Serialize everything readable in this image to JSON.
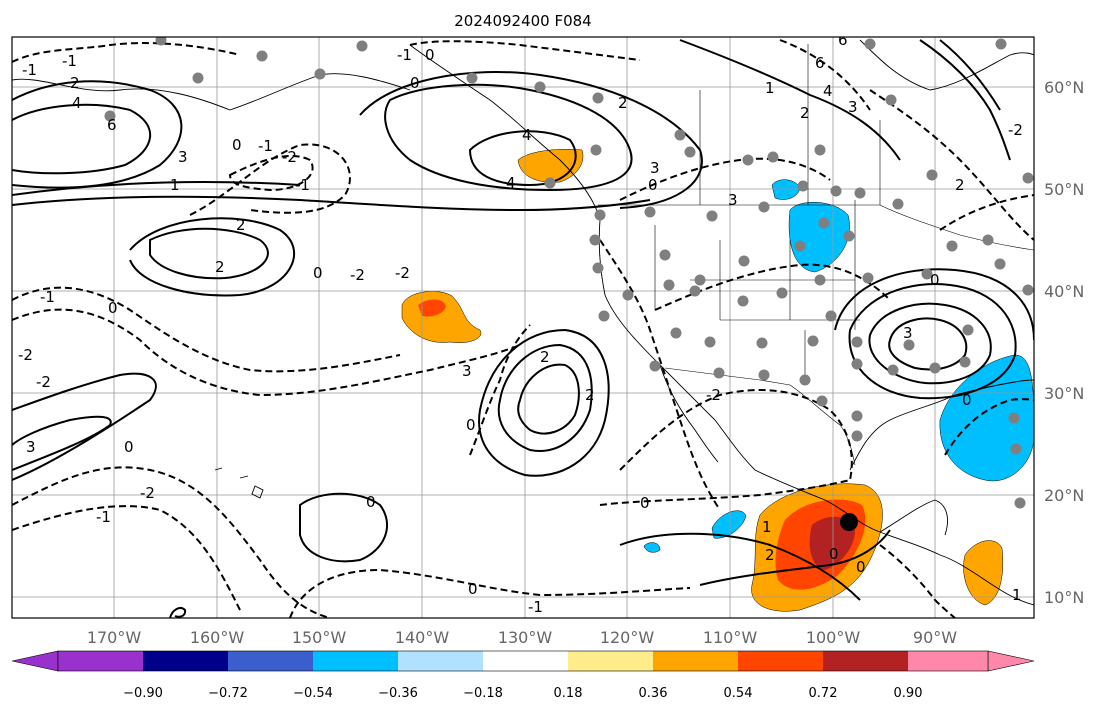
{
  "title": "2024092400 F084",
  "map": {
    "lon_labels": [
      "170°W",
      "160°W",
      "150°W",
      "140°W",
      "130°W",
      "120°W",
      "110°W",
      "100°W",
      "90°W"
    ],
    "lat_labels": [
      "60°N",
      "50°N",
      "40°N",
      "30°N",
      "20°N",
      "10°N"
    ],
    "contour_labels": [
      "-2",
      "-1",
      "0",
      "1",
      "2",
      "3",
      "4",
      "6"
    ],
    "center_marker": {
      "lon": -97.3,
      "lat": 17.3
    }
  },
  "colorbar": {
    "ticks": [
      "−0.90",
      "−0.72",
      "−0.54",
      "−0.36",
      "−0.18",
      "0.18",
      "0.36",
      "0.54",
      "0.72",
      "0.90"
    ],
    "colors": [
      "#9932cc",
      "#00008b",
      "#3a5fcd",
      "#00bfff",
      "#b0e2ff",
      "#ffffff",
      "#ffec8b",
      "#ffa500",
      "#ff4500",
      "#b22222",
      "#ff88aa"
    ]
  },
  "colors": {
    "shade_orange": "#ffa500",
    "shade_red": "#ff4500",
    "shade_darkred": "#b22222",
    "shade_blue": "#00bfff",
    "shade_lightblue": "#b0e2ff",
    "gridline": "#999999",
    "tick_text": "#666666"
  }
}
